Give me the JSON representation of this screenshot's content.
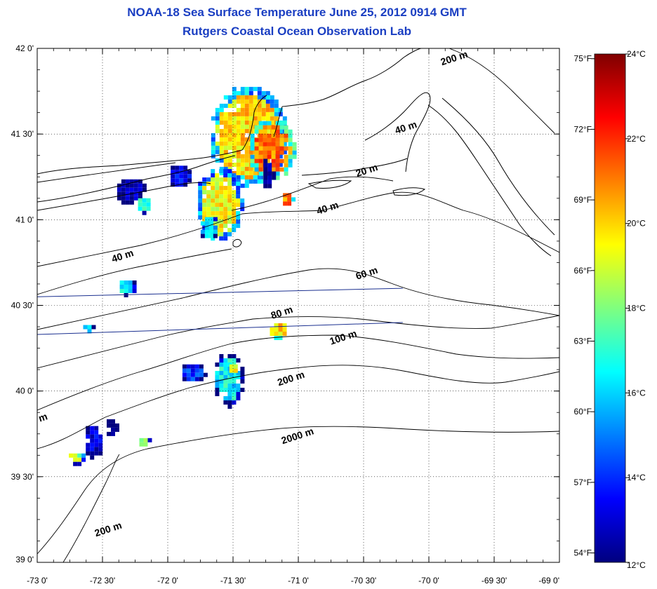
{
  "header": {
    "title": "NOAA-18 Sea Surface Temperature June 25, 2012 0914 GMT",
    "subtitle": "Rutgers Coastal Ocean Observation Lab"
  },
  "map": {
    "lon_range": [
      -73.0,
      -69.0
    ],
    "lat_range": [
      39.0,
      42.0
    ],
    "lon_ticks": [
      {
        "value": -73.0,
        "label": "-73 0'"
      },
      {
        "value": -72.5,
        "label": "-72 30'"
      },
      {
        "value": -72.0,
        "label": "-72 0'"
      },
      {
        "value": -71.5,
        "label": "-71 30'"
      },
      {
        "value": -71.0,
        "label": "-71 0'"
      },
      {
        "value": -70.5,
        "label": "-70 30'"
      },
      {
        "value": -70.0,
        "label": "-70 0'"
      },
      {
        "value": -69.5,
        "label": "-69 30'"
      },
      {
        "value": -69.0,
        "label": "-69 0'"
      }
    ],
    "lat_ticks": [
      {
        "value": 39.0,
        "label": "39 0'"
      },
      {
        "value": 39.5,
        "label": "39 30'"
      },
      {
        "value": 40.0,
        "label": "40 0'"
      },
      {
        "value": 40.5,
        "label": "40 30'"
      },
      {
        "value": 41.0,
        "label": "41 0'"
      },
      {
        "value": 41.5,
        "label": "41 30'"
      },
      {
        "value": 42.0,
        "label": "42 0'"
      }
    ],
    "grid": "dotted",
    "land_color": "#ffffff",
    "isobath_labels": [
      {
        "text": "200 m",
        "lon": -69.9,
        "lat": 41.9
      },
      {
        "text": "40 m",
        "lon": -70.25,
        "lat": 41.5
      },
      {
        "text": "20 m",
        "lon": -70.55,
        "lat": 41.25
      },
      {
        "text": "40 m",
        "lon": -70.85,
        "lat": 41.03
      },
      {
        "text": "40 m",
        "lon": -72.42,
        "lat": 40.75
      },
      {
        "text": "60 m",
        "lon": -70.55,
        "lat": 40.65
      },
      {
        "text": "80 m",
        "lon": -71.2,
        "lat": 40.42
      },
      {
        "text": "100 m",
        "lon": -70.75,
        "lat": 40.27
      },
      {
        "text": "200 m",
        "lon": -71.15,
        "lat": 40.03
      },
      {
        "text": "2000 m",
        "lon": -71.12,
        "lat": 39.69
      },
      {
        "text": "200 m",
        "lon": -72.55,
        "lat": 39.15
      },
      {
        "text": "m",
        "lon": -72.98,
        "lat": 39.82
      }
    ],
    "tracks": [
      {
        "from": [
          -73.0,
          40.55
        ],
        "to": [
          -70.2,
          40.6
        ]
      },
      {
        "from": [
          -73.0,
          40.33
        ],
        "to": [
          -70.2,
          40.4
        ]
      }
    ],
    "sst_patches": [
      {
        "lon": -71.4,
        "lat": 41.5,
        "rx": 0.3,
        "ry": 0.3,
        "temp": 21.0
      },
      {
        "lon": -71.22,
        "lat": 41.42,
        "rx": 0.18,
        "ry": 0.18,
        "temp": 22.2
      },
      {
        "lon": -71.62,
        "lat": 41.1,
        "rx": 0.18,
        "ry": 0.22,
        "temp": 20.5
      },
      {
        "lon": -71.7,
        "lat": 40.97,
        "rx": 0.08,
        "ry": 0.07,
        "temp": 17.0
      },
      {
        "lon": -71.92,
        "lat": 41.27,
        "rx": 0.09,
        "ry": 0.07,
        "temp": 14.5
      },
      {
        "lon": -72.3,
        "lat": 41.18,
        "rx": 0.12,
        "ry": 0.08,
        "temp": 13.5
      },
      {
        "lon": -72.2,
        "lat": 41.1,
        "rx": 0.06,
        "ry": 0.05,
        "temp": 17.5
      },
      {
        "lon": -71.25,
        "lat": 41.28,
        "rx": 0.05,
        "ry": 0.1,
        "temp": 13.0
      },
      {
        "lon": -72.33,
        "lat": 40.62,
        "rx": 0.07,
        "ry": 0.05,
        "temp": 17.5
      },
      {
        "lon": -71.17,
        "lat": 40.37,
        "rx": 0.08,
        "ry": 0.05,
        "temp": 21.0
      },
      {
        "lon": -71.55,
        "lat": 40.08,
        "rx": 0.12,
        "ry": 0.16,
        "temp": 17.5
      },
      {
        "lon": -71.52,
        "lat": 40.14,
        "rx": 0.04,
        "ry": 0.04,
        "temp": 20.5
      },
      {
        "lon": -71.82,
        "lat": 40.12,
        "rx": 0.1,
        "ry": 0.06,
        "temp": 15.0
      },
      {
        "lon": -72.58,
        "lat": 39.72,
        "rx": 0.08,
        "ry": 0.1,
        "temp": 14.0
      },
      {
        "lon": -72.45,
        "lat": 39.8,
        "rx": 0.05,
        "ry": 0.06,
        "temp": 13.0
      },
      {
        "lon": -72.72,
        "lat": 39.62,
        "rx": 0.07,
        "ry": 0.04,
        "temp": 19.5
      },
      {
        "lon": -72.2,
        "lat": 39.72,
        "rx": 0.05,
        "ry": 0.03,
        "temp": 18.5
      },
      {
        "lon": -72.63,
        "lat": 40.38,
        "rx": 0.05,
        "ry": 0.03,
        "temp": 16.5
      },
      {
        "lon": -71.1,
        "lat": 41.13,
        "rx": 0.05,
        "ry": 0.05,
        "temp": 22.0
      }
    ]
  },
  "colorbar": {
    "min_c": 12,
    "max_c": 24,
    "celsius_ticks": [
      "12°C",
      "14°C",
      "16°C",
      "18°C",
      "20°C",
      "22°C",
      "24°C"
    ],
    "fahrenheit_ticks": [
      "54°F",
      "57°F",
      "60°F",
      "63°F",
      "66°F",
      "69°F",
      "72°F",
      "75°F"
    ],
    "colors": [
      "#00007f",
      "#0000ff",
      "#007fff",
      "#00ffff",
      "#7fff7f",
      "#ffff00",
      "#ff7f00",
      "#ff0000",
      "#7f0000"
    ]
  }
}
